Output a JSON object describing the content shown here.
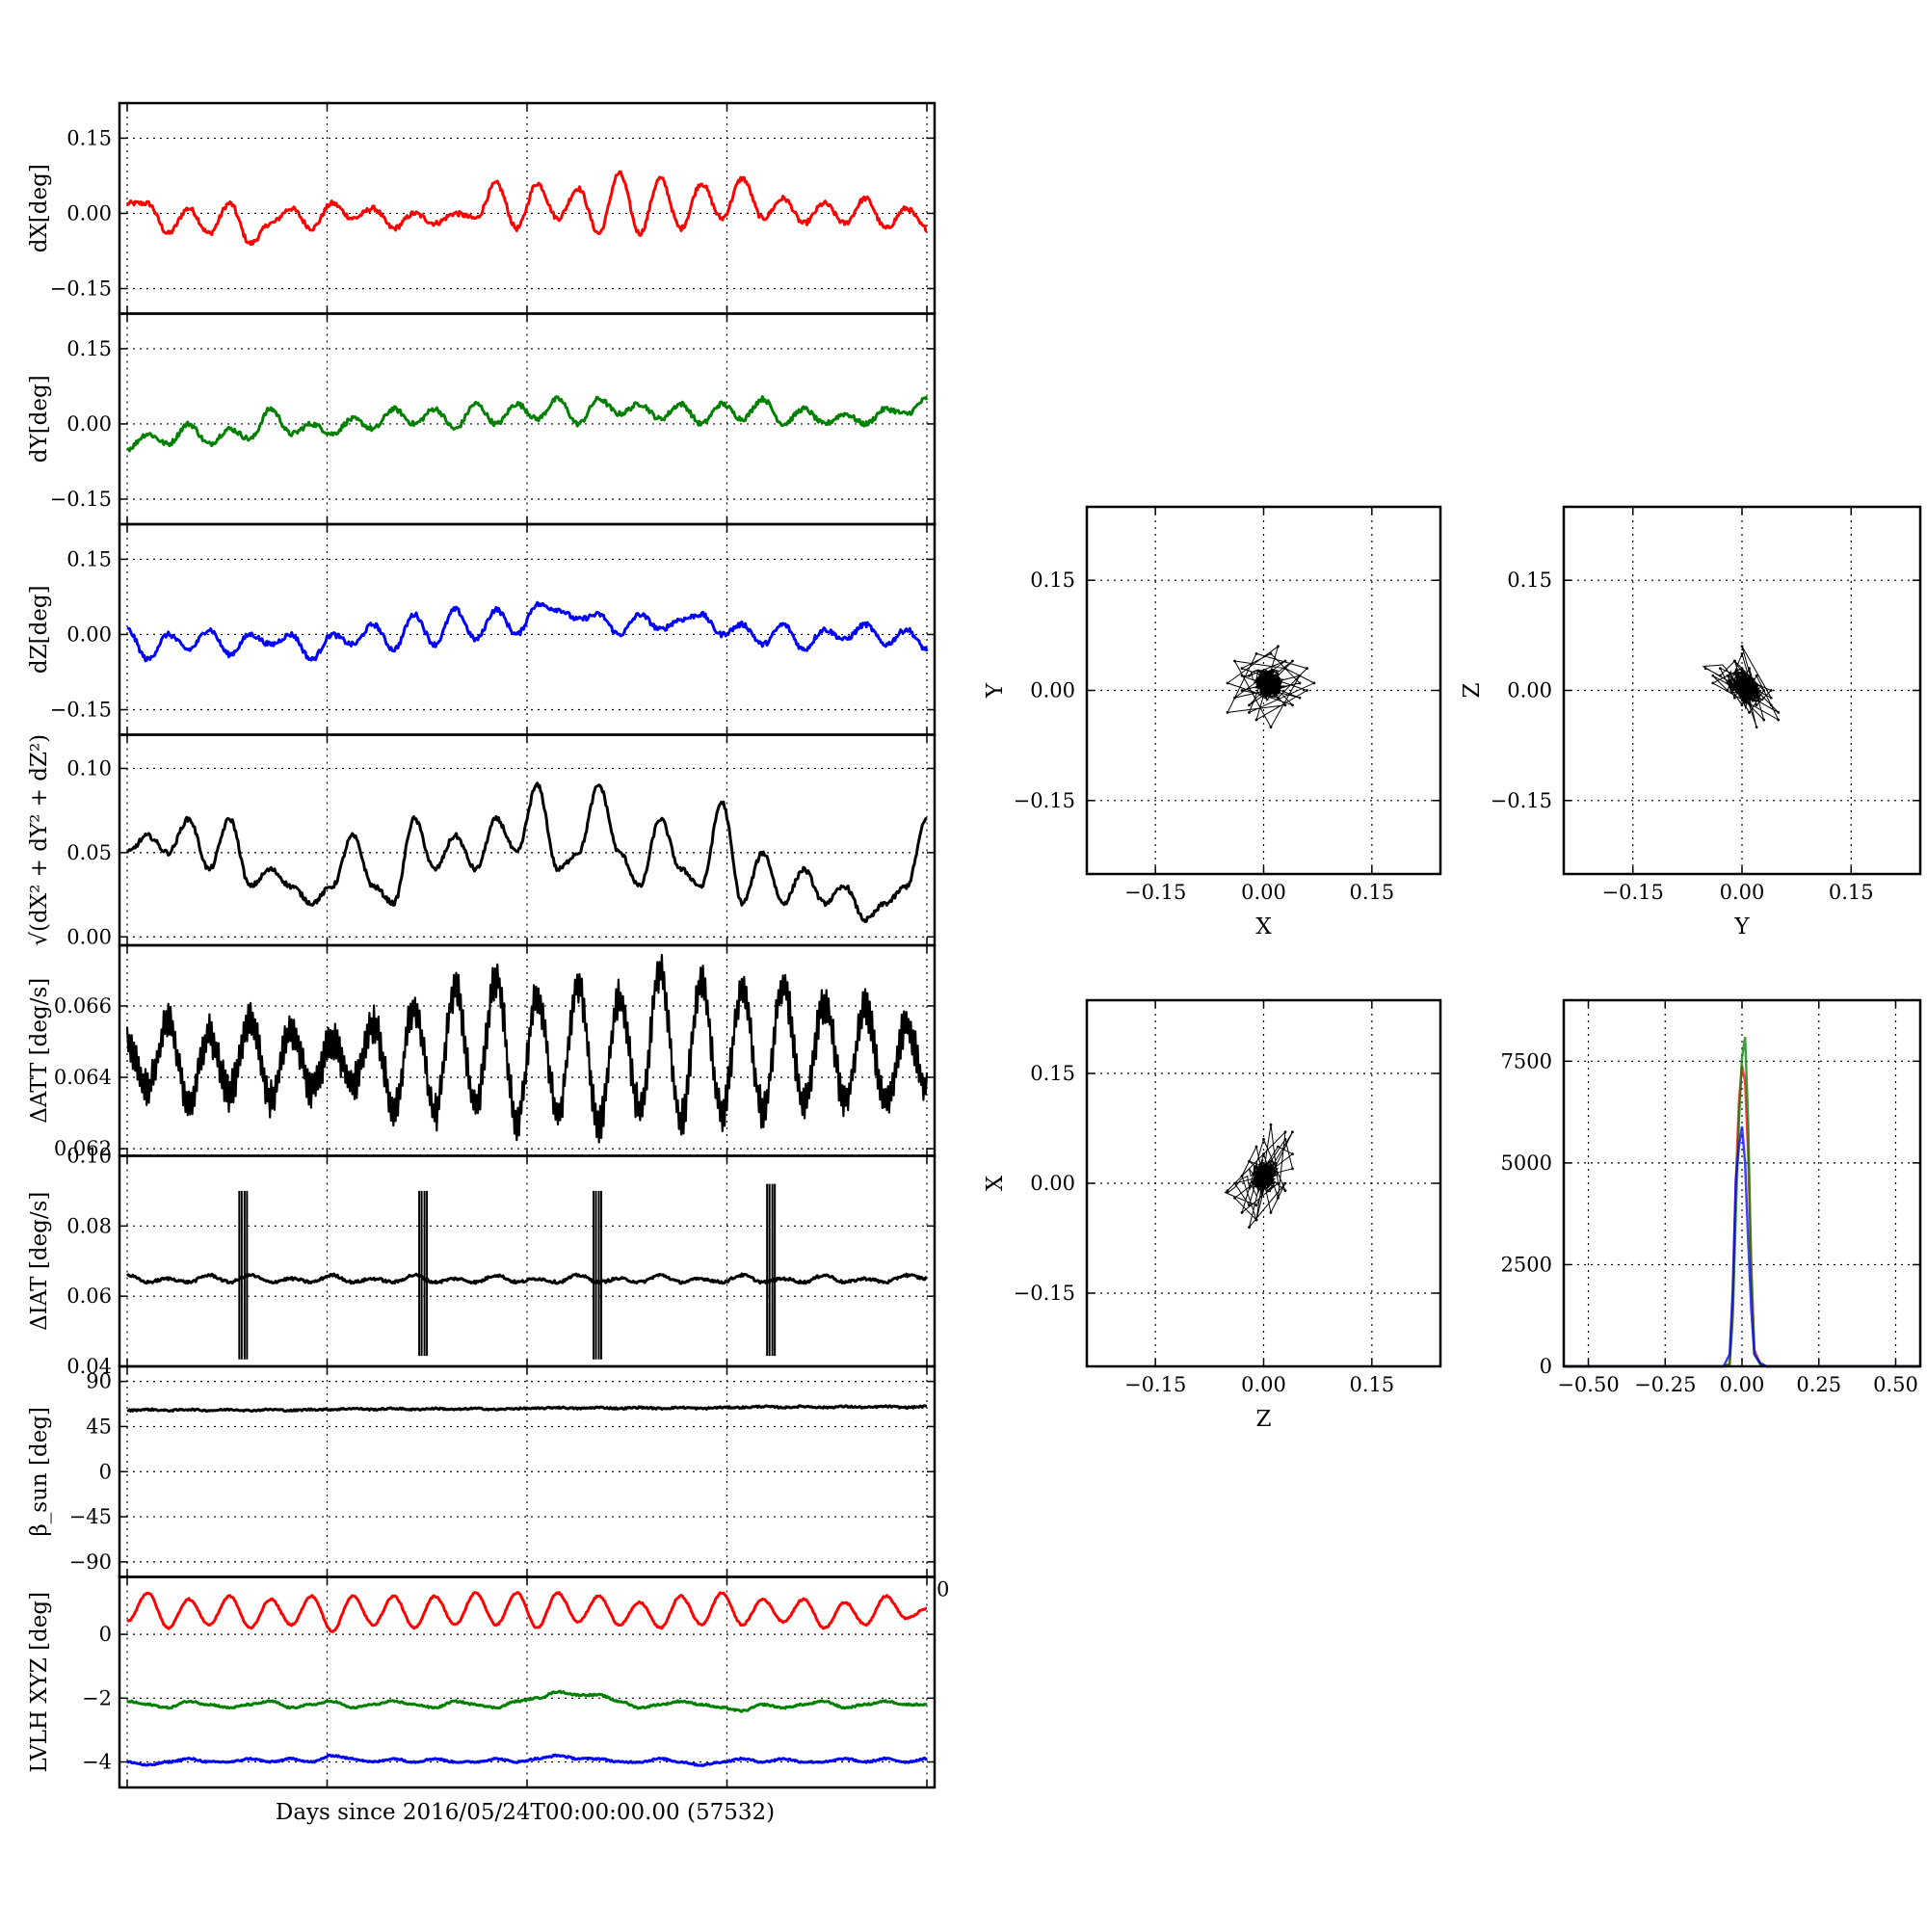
{
  "figure": {
    "shared_xlabel": "Days since 2016/05/24T00:00:00.00 (57532)"
  },
  "chart_data": [
    {
      "type": "line",
      "ylabel": "dX[deg]",
      "x_range": [
        0,
        1
      ],
      "ylim": [
        -0.2,
        0.22
      ],
      "yticks": [
        "0.15",
        "0.00",
        "−0.15"
      ],
      "ytick_values": [
        0.15,
        0.0,
        -0.15
      ],
      "series": [
        {
          "color": "#ff0000",
          "values": [
            0.02,
            0.02,
            -0.04,
            0.01,
            -0.04,
            0.02,
            -0.06,
            -0.02,
            0.01,
            -0.03,
            0.02,
            -0.01,
            0.01,
            -0.03,
            0.0,
            -0.02,
            0.0,
            -0.01,
            0.06,
            -0.03,
            0.06,
            -0.01,
            0.05,
            -0.04,
            0.08,
            -0.04,
            0.07,
            -0.03,
            0.06,
            -0.01,
            0.07,
            -0.01,
            0.03,
            -0.02,
            0.02,
            -0.02,
            0.03,
            -0.03,
            0.01,
            -0.03
          ]
        }
      ]
    },
    {
      "type": "line",
      "ylabel": "dY[deg]",
      "x_range": [
        0,
        1
      ],
      "ylim": [
        -0.2,
        0.22
      ],
      "yticks": [
        "0.15",
        "0.00",
        "−0.15"
      ],
      "ytick_values": [
        0.15,
        0.0,
        -0.15
      ],
      "series": [
        {
          "color": "#008000",
          "values": [
            -0.05,
            -0.02,
            -0.04,
            0.0,
            -0.04,
            -0.01,
            -0.03,
            0.03,
            -0.02,
            0.0,
            -0.02,
            0.01,
            -0.01,
            0.03,
            0.0,
            0.03,
            -0.01,
            0.04,
            0.0,
            0.04,
            0.01,
            0.05,
            0.0,
            0.05,
            0.02,
            0.04,
            0.01,
            0.04,
            0.0,
            0.04,
            0.01,
            0.05,
            0.0,
            0.03,
            0.0,
            0.02,
            0.0,
            0.03,
            0.02,
            0.05
          ]
        }
      ]
    },
    {
      "type": "line",
      "ylabel": "dZ[deg]",
      "x_range": [
        0,
        1
      ],
      "ylim": [
        -0.2,
        0.22
      ],
      "yticks": [
        "0.15",
        "0.00",
        "−0.15"
      ],
      "ytick_values": [
        0.15,
        0.0,
        -0.15
      ],
      "series": [
        {
          "color": "#0000ff",
          "values": [
            0.01,
            -0.05,
            0.0,
            -0.03,
            0.01,
            -0.04,
            0.0,
            -0.02,
            0.0,
            -0.05,
            0.0,
            -0.02,
            0.02,
            -0.03,
            0.04,
            -0.02,
            0.05,
            -0.01,
            0.05,
            0.0,
            0.06,
            0.05,
            0.03,
            0.04,
            0.0,
            0.04,
            0.01,
            0.03,
            0.04,
            0.0,
            0.02,
            -0.02,
            0.02,
            -0.03,
            0.01,
            -0.01,
            0.02,
            -0.02,
            0.01,
            -0.03
          ]
        }
      ]
    },
    {
      "type": "line",
      "ylabel": "√(dX² + dY² + dZ²)",
      "x_range": [
        0,
        1
      ],
      "ylim": [
        -0.005,
        0.12
      ],
      "yticks": [
        "0.10",
        "0.05",
        "0.00"
      ],
      "ytick_values": [
        0.1,
        0.05,
        0.0
      ],
      "series": [
        {
          "color": "#000000",
          "values": [
            0.05,
            0.06,
            0.05,
            0.07,
            0.04,
            0.07,
            0.03,
            0.04,
            0.03,
            0.02,
            0.03,
            0.06,
            0.03,
            0.02,
            0.07,
            0.04,
            0.06,
            0.04,
            0.07,
            0.05,
            0.09,
            0.04,
            0.05,
            0.09,
            0.05,
            0.03,
            0.07,
            0.04,
            0.03,
            0.08,
            0.02,
            0.05,
            0.02,
            0.04,
            0.02,
            0.03,
            0.01,
            0.02,
            0.03,
            0.07
          ]
        }
      ]
    },
    {
      "type": "line",
      "ylabel": "ΔATT [deg/s]",
      "x_range": [
        0,
        1
      ],
      "ylim": [
        0.0618,
        0.0677
      ],
      "yticks": [
        "0.066",
        "0.064",
        "0.062"
      ],
      "ytick_values": [
        0.066,
        0.064,
        0.062
      ],
      "series": [
        {
          "color": "#000000",
          "values": [
            0.065,
            0.0637,
            0.0655,
            0.0633,
            0.0652,
            0.0636,
            0.0657,
            0.0634,
            0.0653,
            0.0637,
            0.065,
            0.0638,
            0.0655,
            0.0632,
            0.066,
            0.063,
            0.0665,
            0.0632,
            0.0668,
            0.0628,
            0.0663,
            0.063,
            0.0666,
            0.0627,
            0.0662,
            0.0631,
            0.067,
            0.0628,
            0.0667,
            0.063,
            0.0664,
            0.0631,
            0.0666,
            0.0632,
            0.0661,
            0.0634,
            0.0659,
            0.0633,
            0.0655,
            0.0637
          ]
        }
      ]
    },
    {
      "type": "line",
      "ylabel": "ΔIAT [deg/s]",
      "x_range": [
        0,
        1
      ],
      "ylim": [
        0.04,
        0.1
      ],
      "yticks": [
        "0.10",
        "0.08",
        "0.06",
        "0.04"
      ],
      "ytick_values": [
        0.1,
        0.08,
        0.06,
        0.04
      ],
      "series": [
        {
          "color": "#000000",
          "values": [
            0.066,
            0.064,
            0.065,
            0.064,
            0.066,
            0.064,
            0.066,
            0.064,
            0.065,
            0.064,
            0.066,
            0.064,
            0.065,
            0.064,
            0.066,
            0.064,
            0.065,
            0.064,
            0.066,
            0.064,
            0.065,
            0.064,
            0.066,
            0.064,
            0.065,
            0.064,
            0.066,
            0.064,
            0.065,
            0.064,
            0.066,
            0.064,
            0.065,
            0.064,
            0.066,
            0.064,
            0.065,
            0.064,
            0.066,
            0.065
          ]
        }
      ],
      "spikes": [
        {
          "x": 0.145,
          "min": 0.042,
          "max": 0.09
        },
        {
          "x": 0.37,
          "min": 0.043,
          "max": 0.09
        },
        {
          "x": 0.588,
          "min": 0.042,
          "max": 0.09
        },
        {
          "x": 0.805,
          "min": 0.043,
          "max": 0.092
        }
      ]
    },
    {
      "type": "line",
      "ylabel": "β_sun [deg]",
      "x_range": [
        0,
        1
      ],
      "ylim": [
        -105,
        105
      ],
      "yticks": [
        "90",
        "45",
        "0",
        "−45",
        "−90"
      ],
      "ytick_values": [
        90,
        45,
        0,
        -45,
        -90
      ],
      "series": [
        {
          "color": "#000000",
          "values": [
            61,
            62,
            61,
            62,
            61,
            62,
            61,
            62,
            61,
            62,
            62,
            63,
            62,
            63,
            62,
            63,
            62,
            63,
            62,
            63,
            63,
            64,
            63,
            64,
            63,
            64,
            63,
            64,
            63,
            64,
            64,
            65,
            64,
            65,
            64,
            65,
            64,
            65,
            64,
            65
          ]
        }
      ]
    },
    {
      "type": "line",
      "ylabel": "LVLH XYZ [deg]",
      "x_range": [
        0,
        1
      ],
      "ylim": [
        -4.8,
        1.8
      ],
      "yticks": [
        "0",
        "−2",
        "−4"
      ],
      "ytick_values": [
        0,
        -2,
        -4
      ],
      "edge_label": "0",
      "series": [
        {
          "color": "#ff0000",
          "values": [
            0.4,
            1.3,
            0.2,
            1.1,
            0.3,
            1.2,
            0.2,
            1.1,
            0.3,
            1.2,
            0.1,
            1.2,
            0.3,
            1.2,
            0.2,
            1.2,
            0.3,
            1.3,
            0.3,
            1.3,
            0.2,
            1.3,
            0.4,
            1.2,
            0.3,
            1.0,
            0.2,
            1.2,
            0.3,
            1.3,
            0.3,
            1.1,
            0.4,
            1.1,
            0.2,
            1.0,
            0.3,
            1.2,
            0.5,
            0.8
          ]
        },
        {
          "color": "#008000",
          "values": [
            -2.1,
            -2.2,
            -2.3,
            -2.1,
            -2.2,
            -2.3,
            -2.2,
            -2.1,
            -2.3,
            -2.2,
            -2.1,
            -2.3,
            -2.2,
            -2.1,
            -2.2,
            -2.3,
            -2.1,
            -2.2,
            -2.3,
            -2.1,
            -2.0,
            -1.8,
            -1.9,
            -1.9,
            -2.1,
            -2.3,
            -2.2,
            -2.1,
            -2.2,
            -2.3,
            -2.4,
            -2.2,
            -2.3,
            -2.2,
            -2.1,
            -2.3,
            -2.2,
            -2.1,
            -2.2,
            -2.2
          ]
        },
        {
          "color": "#0000ff",
          "values": [
            -4.0,
            -4.1,
            -4.0,
            -3.9,
            -4.0,
            -4.0,
            -3.9,
            -4.0,
            -3.9,
            -4.0,
            -3.8,
            -3.9,
            -4.0,
            -3.9,
            -4.0,
            -3.9,
            -4.0,
            -4.0,
            -3.9,
            -4.0,
            -3.9,
            -3.8,
            -3.9,
            -3.9,
            -4.0,
            -4.0,
            -3.9,
            -4.0,
            -4.1,
            -4.0,
            -3.9,
            -4.0,
            -3.9,
            -4.0,
            -4.0,
            -3.9,
            -4.0,
            -3.9,
            -4.0,
            -3.9
          ]
        }
      ]
    },
    {
      "type": "scatter",
      "xlabel": "X",
      "ylabel": "Y",
      "xlim": [
        -0.245,
        0.245
      ],
      "ylim": [
        -0.25,
        0.25
      ],
      "xticks": [
        "−0.15",
        "0.00",
        "0.15"
      ],
      "xtick_values": [
        -0.15,
        0.0,
        0.15
      ],
      "yticks": [
        "0.15",
        "0.00",
        "−0.15"
      ],
      "ytick_values": [
        0.15,
        0.0,
        -0.15
      ],
      "series": [
        {
          "color": "#000000",
          "x": [
            -0.02,
            0.03,
            -0.04,
            0.05,
            0.01,
            -0.03,
            0.06,
            -0.01,
            0.02,
            -0.05,
            0.04,
            0.0,
            -0.02,
            0.07,
            0.03,
            -0.04,
            0.01,
            0.05,
            -0.03,
            0.02,
            0.06,
            -0.01,
            -0.05,
            0.03,
            0.0,
            0.04,
            -0.02,
            0.01,
            0.05,
            -0.03
          ],
          "y": [
            0.02,
            0.04,
            -0.01,
            0.01,
            0.05,
            0.03,
            0.0,
            -0.04,
            0.06,
            0.01,
            -0.02,
            0.02,
            -0.03,
            0.01,
            0.03,
            0.04,
            -0.05,
            0.02,
            0.0,
            -0.01,
            0.03,
            0.05,
            -0.03,
            -0.02,
            0.01,
            0.04,
            -0.02,
            0.0,
            -0.01,
            0.02
          ]
        }
      ]
    },
    {
      "type": "scatter",
      "xlabel": "Y",
      "ylabel": "Z",
      "xlim": [
        -0.245,
        0.245
      ],
      "ylim": [
        -0.25,
        0.25
      ],
      "xticks": [
        "−0.15",
        "0.00",
        "0.15"
      ],
      "xtick_values": [
        -0.15,
        0.0,
        0.15
      ],
      "yticks": [
        "0.15",
        "0.00",
        "−0.15"
      ],
      "ytick_values": [
        0.15,
        0.0,
        -0.15
      ],
      "series": [
        {
          "color": "#000000",
          "x": [
            -0.05,
            -0.03,
            -0.01,
            0.01,
            0.03,
            0.05,
            -0.04,
            -0.02,
            0.0,
            0.02,
            0.04,
            -0.03,
            -0.01,
            0.01,
            0.03,
            -0.02,
            0.0,
            0.02,
            0.04,
            0.05,
            -0.04,
            0.0,
            0.02,
            -0.01,
            0.03,
            0.01,
            -0.02,
            0.04,
            0.0,
            0.02
          ],
          "y": [
            0.03,
            0.02,
            0.04,
            0.01,
            -0.01,
            -0.03,
            0.02,
            0.0,
            0.05,
            -0.02,
            0.0,
            0.03,
            -0.01,
            0.03,
            -0.04,
            0.01,
            -0.02,
            0.02,
            -0.02,
            -0.04,
            0.01,
            0.03,
            -0.05,
            0.04,
            0.0,
            -0.03,
            0.02,
            -0.01,
            0.06,
            -0.01
          ]
        }
      ]
    },
    {
      "type": "scatter",
      "xlabel": "Z",
      "ylabel": "X",
      "xlim": [
        -0.245,
        0.245
      ],
      "ylim": [
        -0.25,
        0.25
      ],
      "xticks": [
        "−0.15",
        "0.00",
        "0.15"
      ],
      "xtick_values": [
        -0.15,
        0.0,
        0.15
      ],
      "yticks": [
        "0.15",
        "0.00",
        "−0.15"
      ],
      "ytick_values": [
        0.15,
        0.0,
        -0.15
      ],
      "series": [
        {
          "color": "#000000",
          "x": [
            -0.05,
            -0.03,
            -0.01,
            0.01,
            0.03,
            0.04,
            -0.04,
            -0.02,
            0.0,
            0.02,
            0.03,
            -0.03,
            -0.01,
            0.01,
            0.03,
            -0.02,
            0.0,
            0.02,
            0.04,
            -0.04,
            -0.01,
            0.01,
            0.02,
            -0.03,
            0.0,
            0.03,
            -0.02,
            0.01,
            0.04,
            -0.01
          ],
          "y": [
            -0.01,
            0.01,
            -0.05,
            0.03,
            0.06,
            0.02,
            0.0,
            -0.03,
            0.04,
            -0.02,
            0.07,
            0.01,
            0.05,
            -0.04,
            0.0,
            -0.06,
            0.02,
            0.05,
            0.04,
            -0.02,
            -0.05,
            0.08,
            0.0,
            -0.04,
            0.06,
            -0.01,
            0.03,
            0.02,
            0.07,
            -0.03
          ]
        }
      ]
    },
    {
      "type": "histogram",
      "xlim": [
        -0.58,
        0.58
      ],
      "ylim": [
        0,
        9000
      ],
      "xticks": [
        "−0.50",
        "−0.25",
        "0.00",
        "0.25",
        "0.50"
      ],
      "xtick_values": [
        -0.5,
        -0.25,
        0.0,
        0.25,
        0.5
      ],
      "yticks": [
        "7500",
        "5000",
        "2500",
        "0"
      ],
      "ytick_values": [
        7500,
        5000,
        2500,
        0
      ],
      "bin_centers": [
        -0.1,
        -0.08,
        -0.06,
        -0.04,
        -0.03,
        -0.02,
        -0.01,
        0.0,
        0.01,
        0.02,
        0.03,
        0.04,
        0.06,
        0.08,
        0.1
      ],
      "series": [
        {
          "color": "#ff0000",
          "values": [
            0,
            0,
            0,
            50,
            1500,
            4500,
            6500,
            7400,
            7000,
            5200,
            2500,
            400,
            50,
            0,
            0
          ]
        },
        {
          "color": "#008000",
          "values": [
            0,
            0,
            0,
            60,
            1200,
            3800,
            6000,
            7600,
            8100,
            6000,
            2200,
            300,
            40,
            0,
            0
          ]
        },
        {
          "color": "#0000ff",
          "values": [
            0,
            0,
            0,
            300,
            1900,
            4600,
            5400,
            5900,
            5000,
            3100,
            1400,
            300,
            80,
            0,
            0
          ]
        }
      ]
    }
  ]
}
